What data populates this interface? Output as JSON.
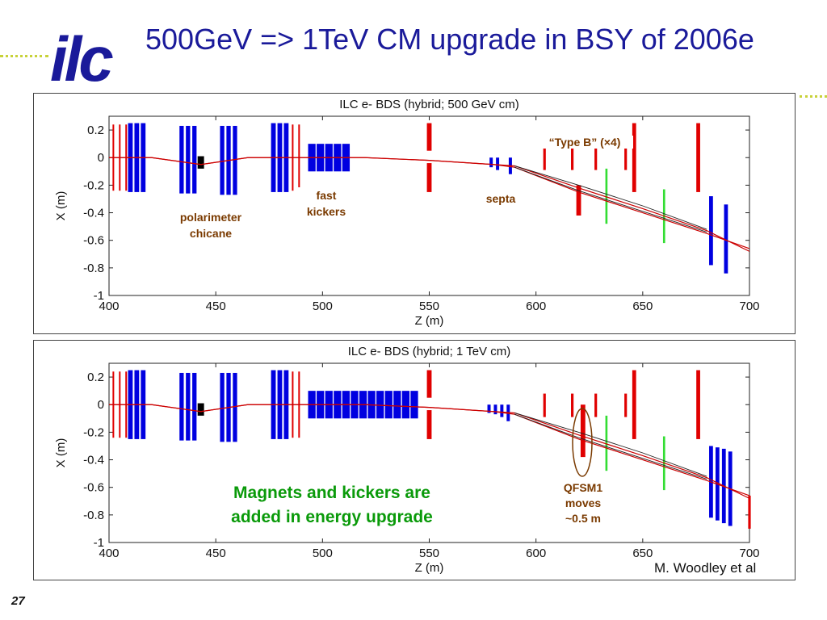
{
  "slide": {
    "title": "500GeV => 1TeV CM upgrade in BSY of 2006e",
    "logo_text": "ilc",
    "credit": "M. Woodley et al",
    "page_number": "27"
  },
  "annotations": {
    "type_b": "“Type B” (×4)",
    "fast_kickers": [
      "fast",
      "kickers"
    ],
    "septa": "septa",
    "polarimeter": [
      "polarimeter",
      "chicane"
    ],
    "upgrade_note": [
      "Magnets and kickers are",
      "added in energy upgrade"
    ],
    "qfsm1": [
      "QFSM1",
      "moves",
      "~0.5 m"
    ]
  },
  "colors": {
    "title": "#1a1a9a",
    "quad_red": "#e00000",
    "bend_blue": "#0000e0",
    "green": "#33dd33",
    "annot_brown": "#7a3a00",
    "annot_green": "#0a9a0a",
    "beam": "#cc0000"
  },
  "chart_data": [
    {
      "type": "line",
      "title": "ILC e- BDS (hybrid; 500 GeV cm)",
      "xlabel": "Z (m)",
      "ylabel": "X (m)",
      "xlim": [
        400,
        700
      ],
      "ylim": [
        -1,
        0.3
      ],
      "xticks": [
        400,
        450,
        500,
        550,
        600,
        650,
        700
      ],
      "yticks": [
        0.2,
        0,
        -0.2,
        -0.4,
        -0.6,
        -0.8,
        -1
      ],
      "series": [
        {
          "x": [
            400,
            420,
            443,
            465,
            490,
            520,
            550,
            580,
            590,
            620,
            650,
            680,
            700
          ],
          "y": [
            0,
            0,
            -0.05,
            0,
            0,
            0,
            -0.02,
            -0.05,
            -0.06,
            -0.22,
            -0.37,
            -0.53,
            -0.68
          ]
        },
        {
          "x": [
            400,
            420,
            443,
            465,
            490,
            520,
            550,
            580,
            590,
            620,
            650,
            680,
            700
          ],
          "y": [
            0,
            0,
            -0.05,
            0,
            0,
            0,
            -0.02,
            -0.05,
            -0.07,
            -0.25,
            -0.4,
            -0.55,
            -0.66
          ]
        },
        {
          "x": [
            590,
            620,
            650,
            680
          ],
          "y": [
            -0.06,
            -0.2,
            -0.35,
            -0.52
          ]
        },
        {
          "x": [
            590,
            620,
            650,
            680
          ],
          "y": [
            -0.07,
            -0.24,
            -0.39,
            -0.54
          ]
        }
      ]
    },
    {
      "type": "line",
      "title": "ILC e- BDS (hybrid; 1 TeV cm)",
      "xlabel": "Z (m)",
      "ylabel": "X (m)",
      "xlim": [
        400,
        700
      ],
      "ylim": [
        -1,
        0.3
      ],
      "xticks": [
        400,
        450,
        500,
        550,
        600,
        650,
        700
      ],
      "yticks": [
        0.2,
        0,
        -0.2,
        -0.4,
        -0.6,
        -0.8,
        -1
      ],
      "series": [
        {
          "x": [
            400,
            420,
            443,
            465,
            490,
            520,
            550,
            580,
            590,
            620,
            650,
            680,
            700
          ],
          "y": [
            0,
            0,
            -0.05,
            0,
            0,
            0,
            -0.02,
            -0.05,
            -0.06,
            -0.22,
            -0.37,
            -0.53,
            -0.68
          ]
        },
        {
          "x": [
            400,
            420,
            443,
            465,
            490,
            520,
            550,
            580,
            590,
            620,
            650,
            680,
            700
          ],
          "y": [
            0,
            0,
            -0.05,
            0,
            0,
            0,
            -0.02,
            -0.05,
            -0.07,
            -0.25,
            -0.4,
            -0.55,
            -0.66
          ]
        },
        {
          "x": [
            590,
            620,
            650,
            680
          ],
          "y": [
            -0.06,
            -0.2,
            -0.35,
            -0.52
          ]
        },
        {
          "x": [
            590,
            620,
            650,
            680
          ],
          "y": [
            -0.07,
            -0.24,
            -0.39,
            -0.54
          ]
        }
      ]
    }
  ]
}
